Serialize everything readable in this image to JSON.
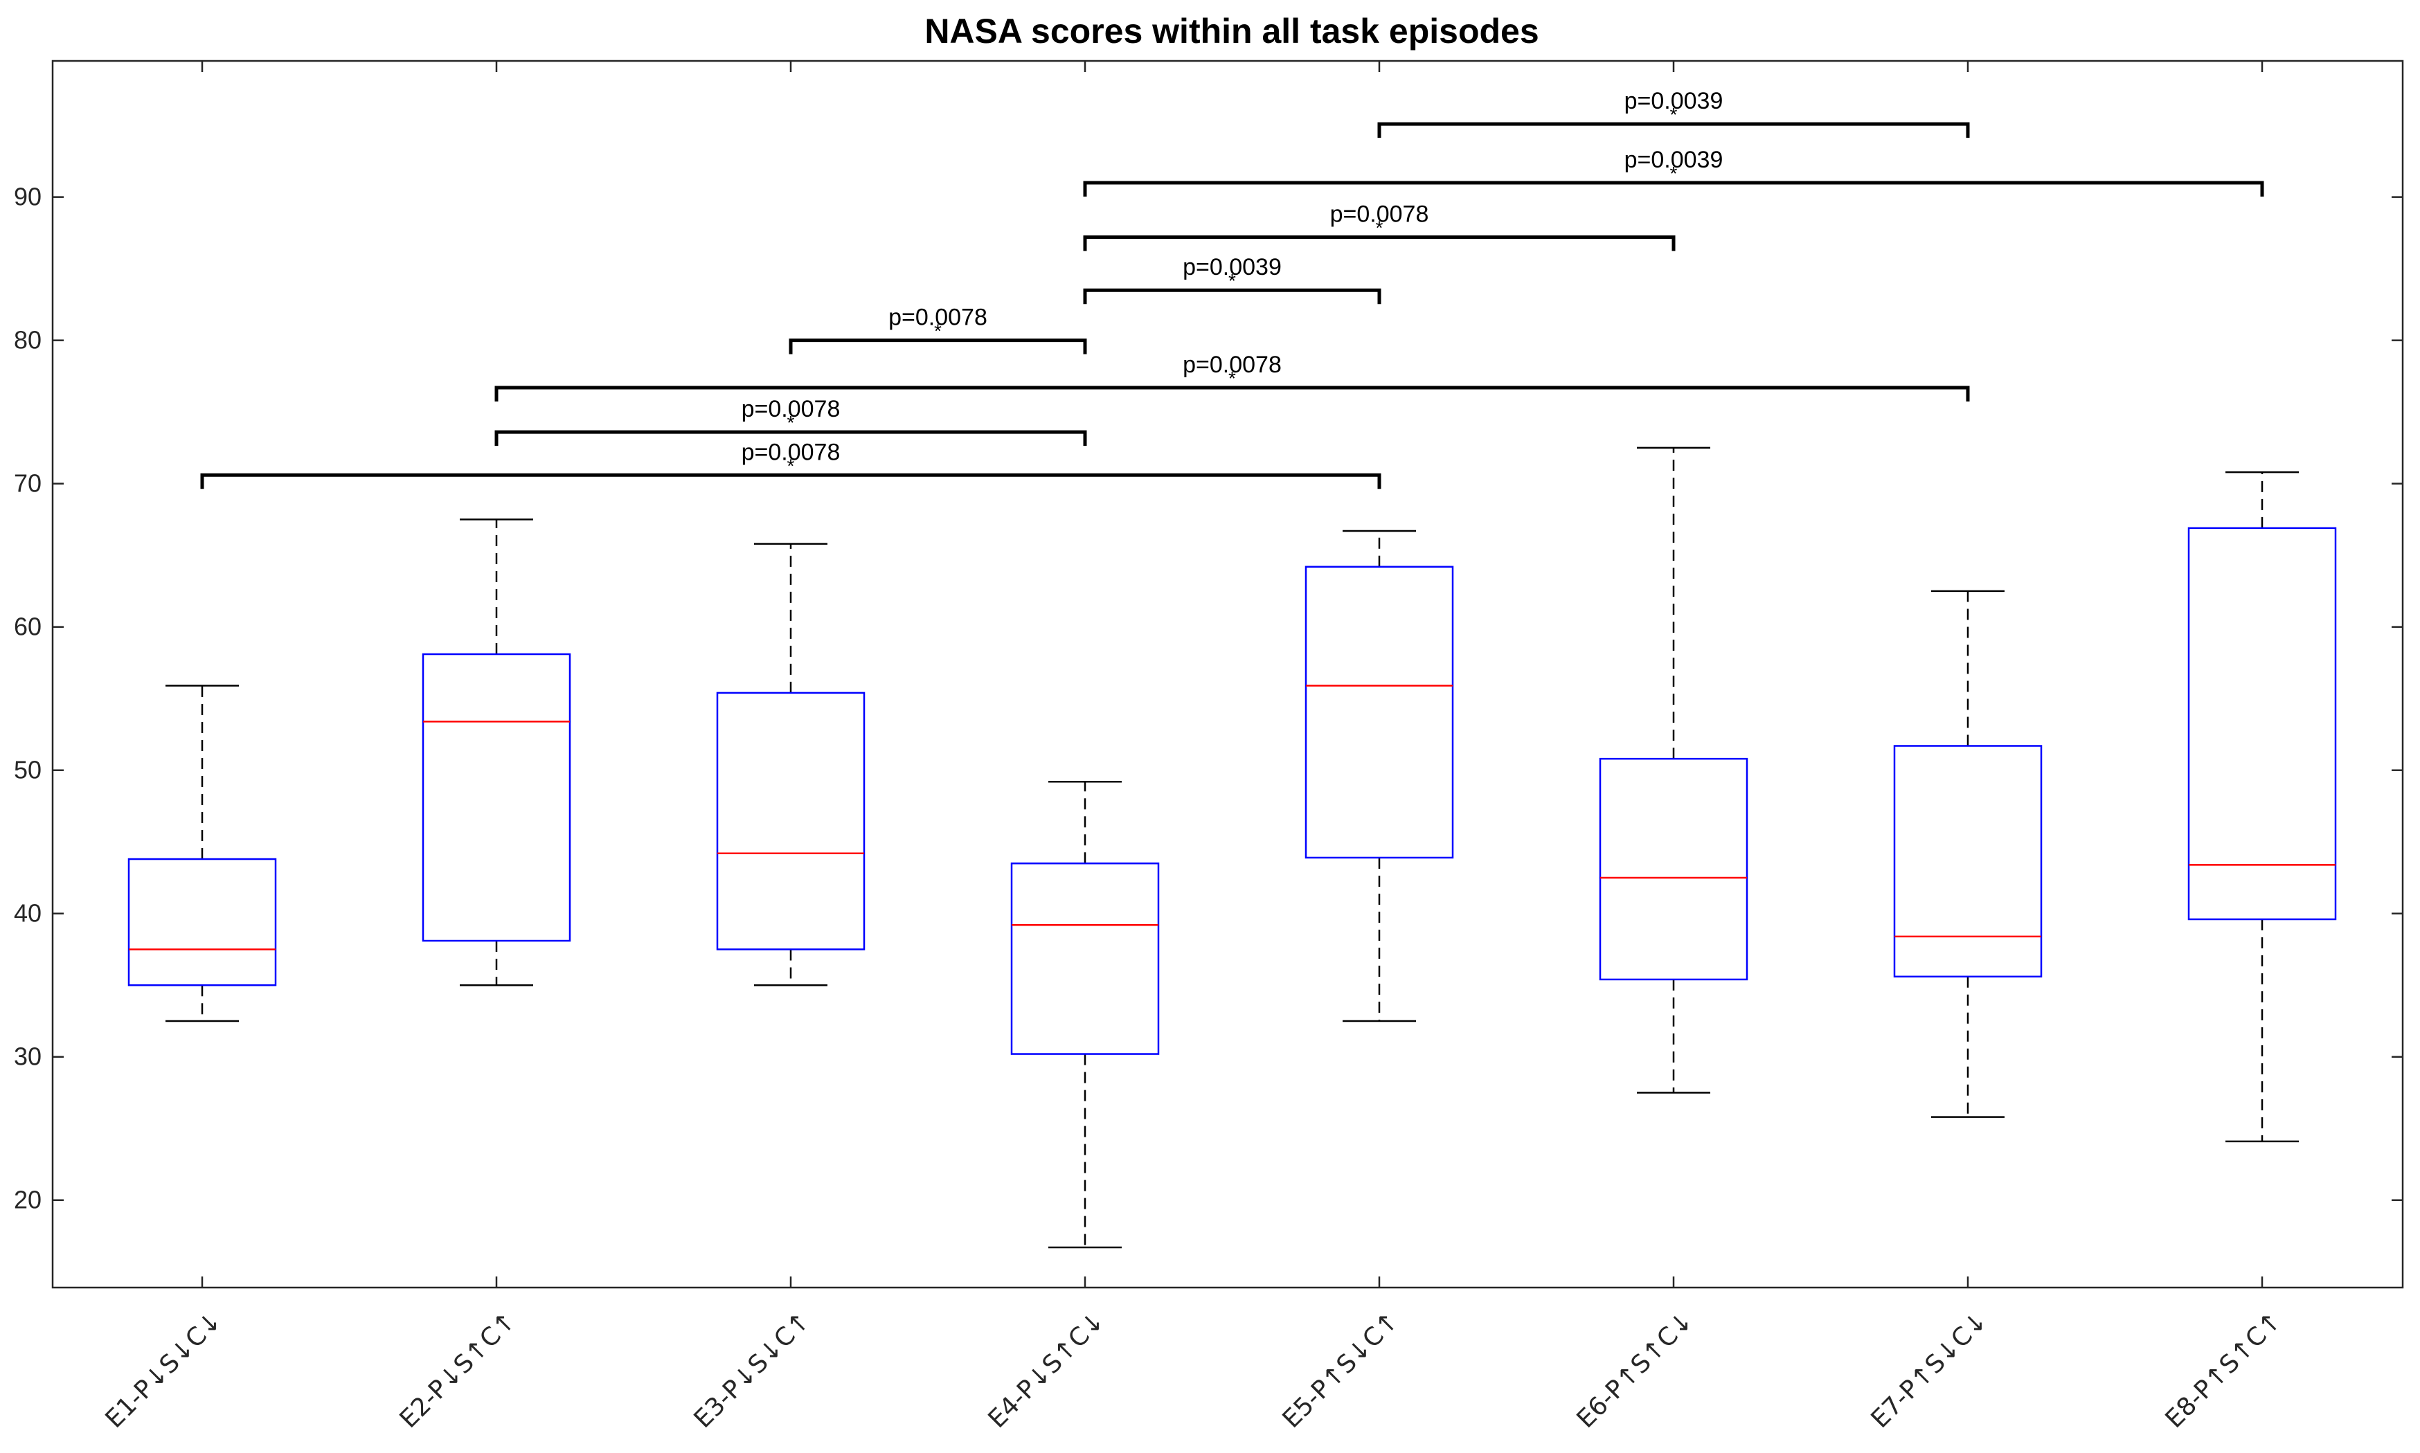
{
  "chart_data": {
    "type": "box",
    "title": "NASA scores within all task episodes",
    "xlabel": "",
    "ylabel": "",
    "ylim": [
      13.9,
      99.5
    ],
    "yticks": [
      20,
      30,
      40,
      50,
      60,
      70,
      80,
      90
    ],
    "categories": [
      "E1-P↓S↓C↓",
      "E2-P↓S↑C↑",
      "E3-P↓S↓C↑",
      "E4-P↓S↑C↓",
      "E5-P↑S↓C↑",
      "E6-P↑S↑C↓",
      "E7-P↑S↓C↓",
      "E8-P↑S↑C↑"
    ],
    "boxes": [
      {
        "whisker_low": 32.5,
        "q1": 35.0,
        "median": 37.5,
        "q3": 43.8,
        "whisker_high": 55.9
      },
      {
        "whisker_low": 35.0,
        "q1": 38.1,
        "median": 53.4,
        "q3": 58.1,
        "whisker_high": 67.5
      },
      {
        "whisker_low": 35.0,
        "q1": 37.5,
        "median": 44.2,
        "q3": 55.4,
        "whisker_high": 65.8
      },
      {
        "whisker_low": 16.7,
        "q1": 30.2,
        "median": 39.2,
        "q3": 43.5,
        "whisker_high": 49.2
      },
      {
        "whisker_low": 32.5,
        "q1": 43.9,
        "median": 55.9,
        "q3": 64.2,
        "whisker_high": 66.7
      },
      {
        "whisker_low": 27.5,
        "q1": 35.4,
        "median": 42.5,
        "q3": 50.8,
        "whisker_high": 72.5
      },
      {
        "whisker_low": 25.8,
        "q1": 35.6,
        "median": 38.4,
        "q3": 51.7,
        "whisker_high": 62.5
      },
      {
        "whisker_low": 24.1,
        "q1": 39.6,
        "median": 43.4,
        "q3": 66.9,
        "whisker_high": 70.8
      }
    ],
    "significance": [
      {
        "from": 1,
        "to": 5,
        "y": 70.6,
        "p": "p=0.0078",
        "mark": "*"
      },
      {
        "from": 2,
        "to": 4,
        "y": 73.6,
        "p": "p=0.0078",
        "mark": "*"
      },
      {
        "from": 2,
        "to": 7,
        "y": 76.7,
        "p": "p=0.0078",
        "mark": "*"
      },
      {
        "from": 3,
        "to": 4,
        "y": 80.0,
        "p": "p=0.0078",
        "mark": "*"
      },
      {
        "from": 4,
        "to": 5,
        "y": 83.5,
        "p": "p=0.0039",
        "mark": "*"
      },
      {
        "from": 4,
        "to": 6,
        "y": 87.2,
        "p": "p=0.0078",
        "mark": "*"
      },
      {
        "from": 4,
        "to": 8,
        "y": 91.0,
        "p": "p=0.0039",
        "mark": "*"
      },
      {
        "from": 5,
        "to": 7,
        "y": 95.1,
        "p": "p=0.0039",
        "mark": "*"
      }
    ],
    "colors": {
      "box": "#0000ff",
      "median": "#ff0000",
      "whisker": "#000000",
      "axis": "#262626",
      "bracket": "#000000"
    }
  }
}
